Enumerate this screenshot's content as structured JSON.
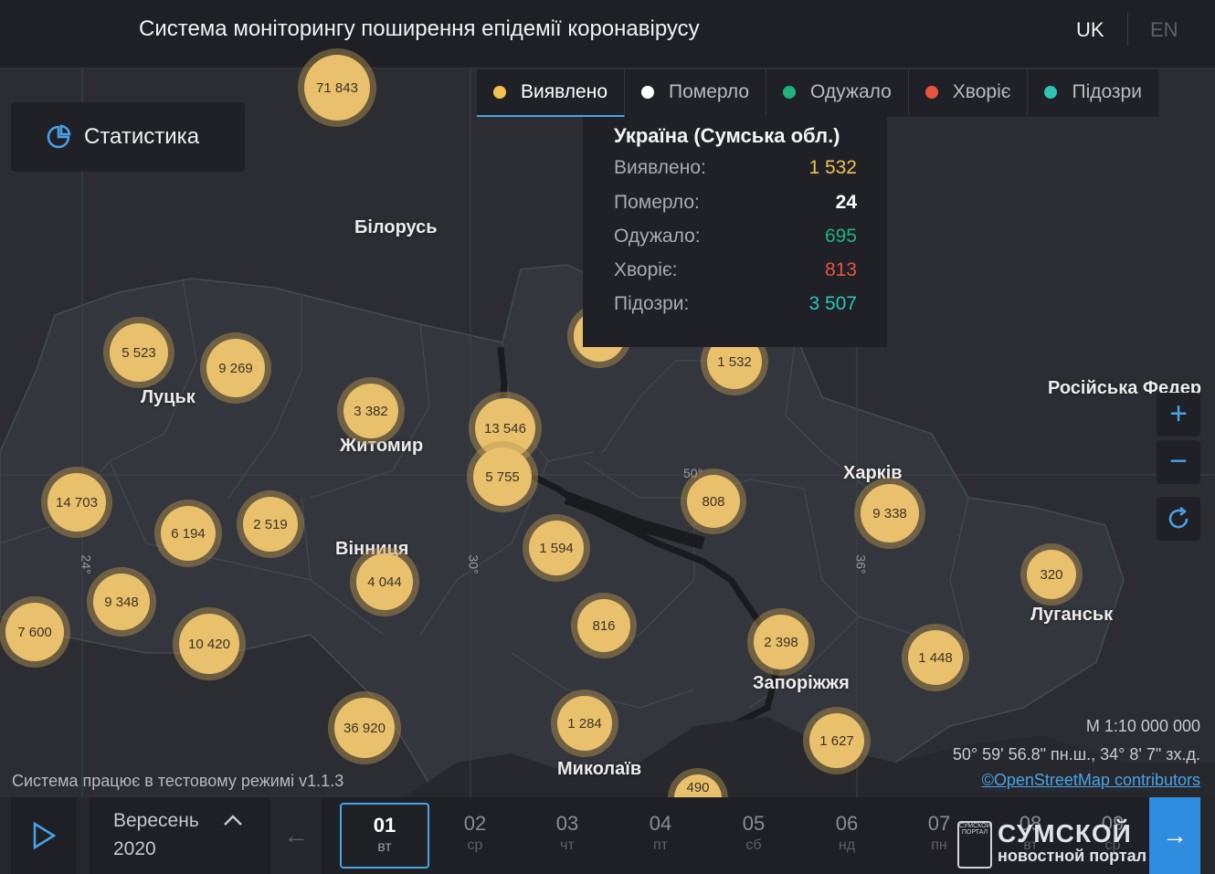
{
  "header": {
    "title": "Система моніторингу поширення епідемії коронавірусу",
    "lang_uk": "UK",
    "lang_en": "EN"
  },
  "stat_button": {
    "label": "Статистика",
    "icon": "pie-chart-icon"
  },
  "tabs": [
    {
      "label": "Виявлено",
      "color": "#f2c14e",
      "active": true
    },
    {
      "label": "Померло",
      "color": "#ffffff",
      "active": false
    },
    {
      "label": "Одужало",
      "color": "#1fb37c",
      "active": false
    },
    {
      "label": "Хворіє",
      "color": "#e8553a",
      "active": false
    },
    {
      "label": "Підозри",
      "color": "#2ec4b6",
      "active": false
    }
  ],
  "popup": {
    "title": "Україна (Сумська обл.)",
    "rows": [
      {
        "label": "Виявлено:",
        "value": "1 532",
        "color": "#f2c14e"
      },
      {
        "label": "Померло:",
        "value": "24",
        "color": "#ffffff"
      },
      {
        "label": "Одужало:",
        "value": "695",
        "color": "#1fb37c"
      },
      {
        "label": "Хворіє:",
        "value": "813",
        "color": "#e8553a"
      },
      {
        "label": "Підозри:",
        "value": "3 507",
        "color": "#2ec4b6"
      }
    ]
  },
  "clusters": [
    "71 843",
    "5 523",
    "9 269",
    "3 382",
    "13 546",
    "5 755",
    "1 532",
    "14 703",
    "6 194",
    "2 519",
    "808",
    "9 338",
    "9 348",
    "4 044",
    "1 594",
    "7 600",
    "10 420",
    "816",
    "320",
    "2 398",
    "1 448",
    "36 920",
    "1 284",
    "1 627",
    "490"
  ],
  "places": [
    "Білорусь",
    "Луцьк",
    "Житомир",
    "Російська Федер",
    "Харків",
    "Вінниця",
    "Луганськ",
    "Запоріжжя",
    "Миколаїв"
  ],
  "degrees": [
    "50°",
    "24°",
    "30°",
    "36°"
  ],
  "map_info": {
    "scale": "М 1:10 000 000",
    "coords": "50° 59' 56.8\" пн.ш., 34° 8' 7\" зх.д.",
    "attribution": "©OpenStreetMap contributors",
    "test_mode": "Система працює в тестовому режимі v1.1.3"
  },
  "timeline": {
    "month": "Вересень",
    "year": "2020",
    "days": [
      {
        "num": "01",
        "wd": "вт",
        "active": true
      },
      {
        "num": "02",
        "wd": "ср"
      },
      {
        "num": "03",
        "wd": "чт"
      },
      {
        "num": "04",
        "wd": "пт"
      },
      {
        "num": "05",
        "wd": "сб"
      },
      {
        "num": "06",
        "wd": "нд"
      },
      {
        "num": "07",
        "wd": "пн"
      },
      {
        "num": "08",
        "wd": "вт"
      },
      {
        "num": "09",
        "wd": "ср"
      }
    ]
  },
  "watermark": {
    "line1": "СУМСКОЙ",
    "line2": "новостной портал",
    "seal": "СУМСКОЙ ПОРТАЛ"
  }
}
